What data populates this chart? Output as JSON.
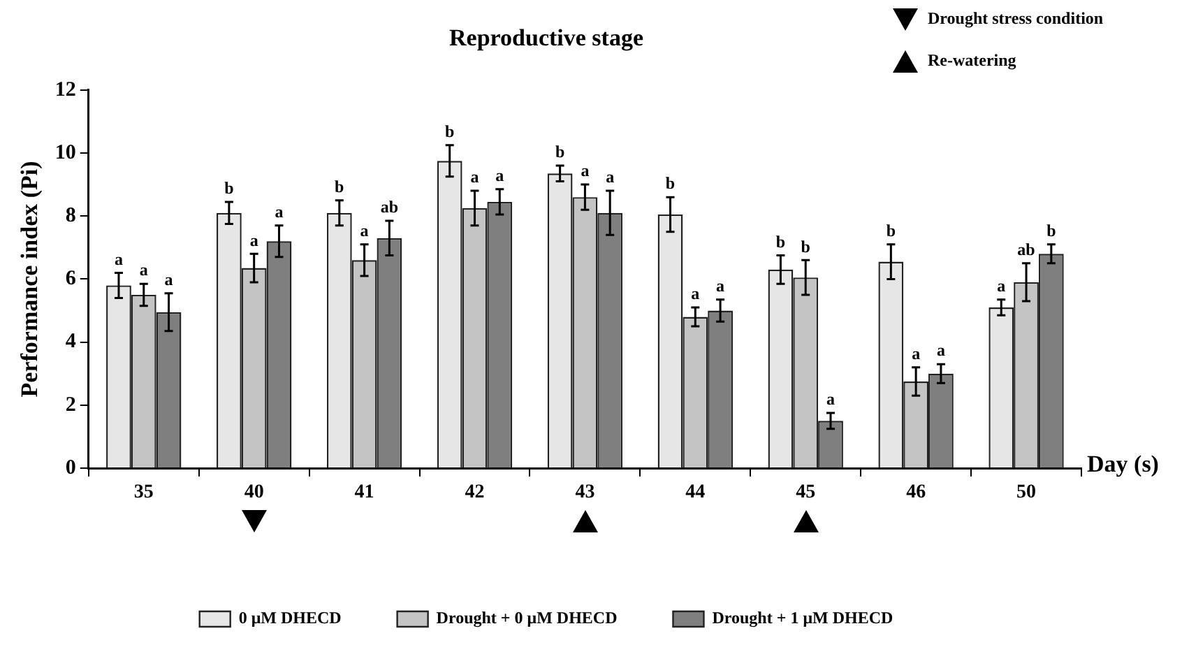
{
  "chart_data": {
    "type": "bar",
    "title": "Reproductive stage",
    "xlabel": "Day (s)",
    "ylabel": "Performance index (Pi)",
    "categories": [
      "35",
      "40",
      "41",
      "42",
      "43",
      "44",
      "45",
      "46",
      "50"
    ],
    "ylim": [
      0,
      12
    ],
    "yticks": [
      0,
      2,
      4,
      6,
      8,
      10,
      12
    ],
    "legend": "bottom",
    "annotations": [
      "Drought stress condition",
      "Re-watering"
    ],
    "series": [
      {
        "name": "0 μM DHECD",
        "color": "#e6e6e6",
        "values": [
          5.8,
          8.1,
          8.1,
          9.75,
          9.35,
          8.05,
          6.3,
          6.55,
          5.1
        ],
        "errors": [
          0.4,
          0.35,
          0.4,
          0.5,
          0.25,
          0.55,
          0.45,
          0.55,
          0.25
        ],
        "value_labels": [
          "a",
          "b",
          "b",
          "b",
          "b",
          "b",
          "b",
          "b",
          "a"
        ]
      },
      {
        "name": "Drought + 0 μM DHECD",
        "color": "#c4c4c4",
        "values": [
          5.5,
          6.35,
          6.6,
          8.25,
          8.6,
          4.8,
          6.05,
          2.75,
          5.9
        ],
        "errors": [
          0.35,
          0.45,
          0.5,
          0.55,
          0.4,
          0.3,
          0.55,
          0.45,
          0.6
        ],
        "value_labels": [
          "a",
          "a",
          "a",
          "a",
          "a",
          "a",
          "b",
          "a",
          "ab"
        ]
      },
      {
        "name": "Drought + 1 μM DHECD",
        "color": "#7f7f7f",
        "values": [
          4.95,
          7.2,
          7.3,
          8.45,
          8.1,
          5.0,
          1.5,
          3.0,
          6.8
        ],
        "errors": [
          0.6,
          0.5,
          0.55,
          0.4,
          0.7,
          0.35,
          0.25,
          0.3,
          0.3
        ],
        "value_labels": [
          "a",
          "a",
          "ab",
          "a",
          "a",
          "a",
          "a",
          "a",
          "b"
        ]
      }
    ]
  }
}
